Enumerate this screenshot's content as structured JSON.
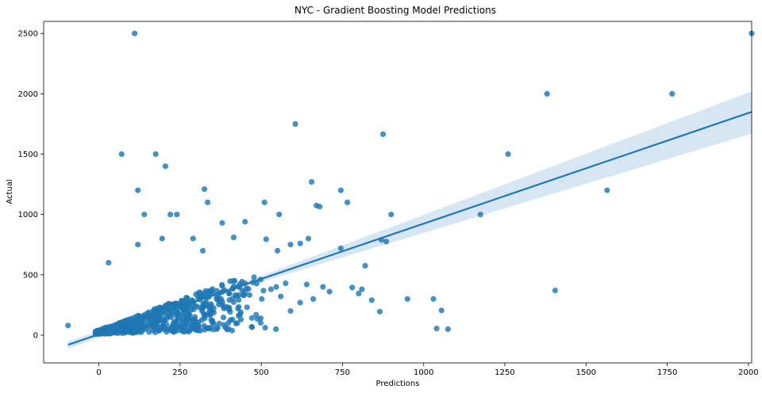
{
  "chart_data": {
    "type": "scatter",
    "title": "NYC - Gradient Boosting Model Predictions",
    "xlabel": "Predictions",
    "ylabel": "Actual",
    "xlim": [
      -170,
      2010
    ],
    "ylim": [
      -230,
      2600
    ],
    "x_ticks": [
      0,
      250,
      500,
      750,
      1000,
      1250,
      1500,
      1750,
      2000
    ],
    "y_ticks": [
      0,
      500,
      1000,
      1500,
      2000,
      2500
    ],
    "grid": false,
    "legend": "none",
    "point_color": "#1f77b4",
    "line_color": "#1f77b4",
    "band_color": "#aecde8",
    "regression": {
      "x": [
        -95,
        2010
      ],
      "y": [
        -80,
        1850
      ],
      "band_upper_end": 2020,
      "band_lower_end": 1670,
      "band_width_start": 30
    },
    "dense_cluster": {
      "x_range": [
        -10,
        560
      ],
      "y_range": [
        5,
        480
      ],
      "description_count": 700
    },
    "points": [
      [
        -95,
        80
      ],
      [
        110,
        2500
      ],
      [
        2010,
        2500
      ],
      [
        1380,
        2000
      ],
      [
        1765,
        2000
      ],
      [
        605,
        1750
      ],
      [
        875,
        1665
      ],
      [
        70,
        1500
      ],
      [
        175,
        1500
      ],
      [
        1260,
        1500
      ],
      [
        205,
        1400
      ],
      [
        655,
        1270
      ],
      [
        325,
        1210
      ],
      [
        120,
        1200
      ],
      [
        745,
        1200
      ],
      [
        1565,
        1200
      ],
      [
        510,
        1100
      ],
      [
        335,
        1100
      ],
      [
        765,
        1100
      ],
      [
        670,
        1075
      ],
      [
        680,
        1065
      ],
      [
        140,
        1000
      ],
      [
        220,
        1000
      ],
      [
        240,
        1000
      ],
      [
        555,
        1000
      ],
      [
        900,
        1000
      ],
      [
        1175,
        1000
      ],
      [
        380,
        930
      ],
      [
        450,
        940
      ],
      [
        870,
        790
      ],
      [
        885,
        775
      ],
      [
        645,
        800
      ],
      [
        195,
        800
      ],
      [
        290,
        800
      ],
      [
        415,
        810
      ],
      [
        515,
        795
      ],
      [
        590,
        750
      ],
      [
        620,
        760
      ],
      [
        745,
        720
      ],
      [
        120,
        750
      ],
      [
        320,
        700
      ],
      [
        550,
        700
      ],
      [
        820,
        575
      ],
      [
        30,
        600
      ],
      [
        690,
        400
      ],
      [
        780,
        395
      ],
      [
        800,
        345
      ],
      [
        810,
        380
      ],
      [
        840,
        290
      ],
      [
        865,
        195
      ],
      [
        950,
        300
      ],
      [
        1030,
        300
      ],
      [
        1040,
        55
      ],
      [
        1055,
        205
      ],
      [
        1075,
        50
      ],
      [
        1405,
        370
      ],
      [
        545,
        50
      ],
      [
        590,
        200
      ],
      [
        620,
        270
      ],
      [
        660,
        300
      ],
      [
        710,
        360
      ],
      [
        560,
        320
      ],
      [
        640,
        420
      ],
      [
        530,
        380
      ],
      [
        575,
        430
      ]
    ]
  }
}
